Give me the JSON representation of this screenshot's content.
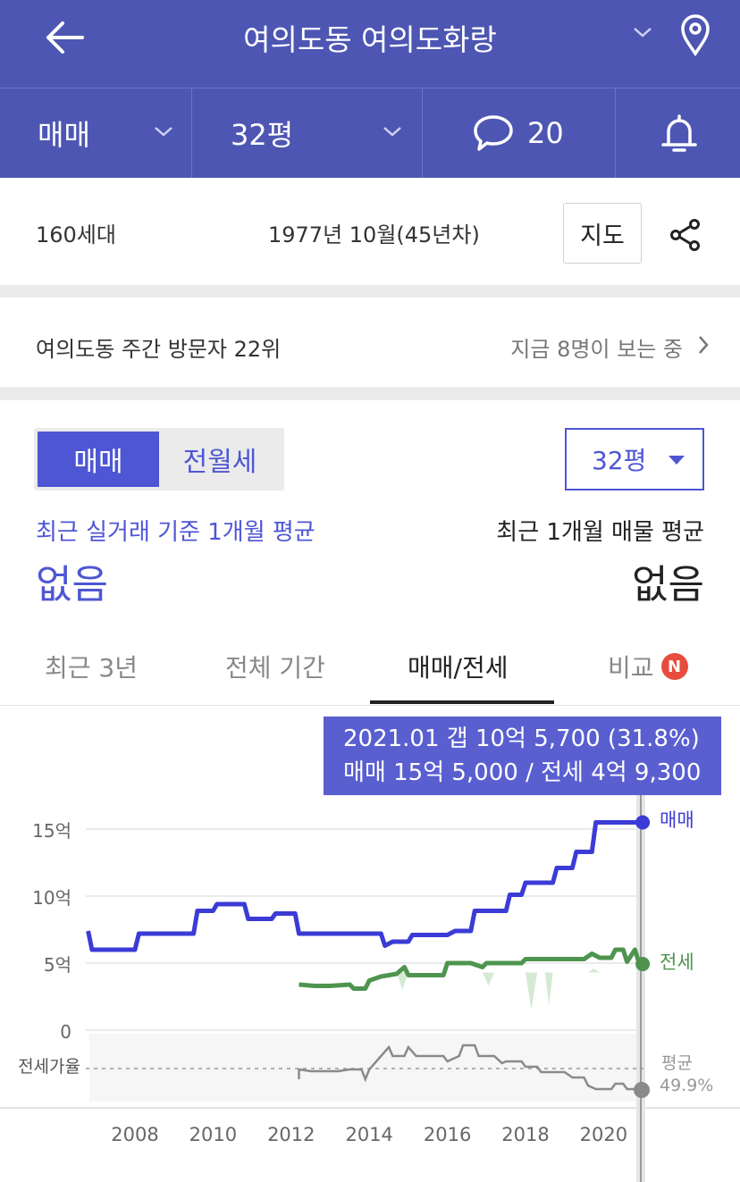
{
  "header": {
    "title": "여의도동 여의도화랑",
    "back_icon": "back-arrow-icon",
    "dropdown_icon": "chevron-down-icon",
    "location_icon": "location-pin-icon",
    "brand_color": "#4e56b3"
  },
  "filters": {
    "deal_type": "매매",
    "size": "32평",
    "comments_count": "20",
    "comment_icon": "chat-bubble-icon",
    "alert_icon": "bell-icon"
  },
  "info": {
    "households": "160세대",
    "built": "1977년 10월(45년차)",
    "map_button": "지도",
    "share_icon": "share-icon"
  },
  "visitors": {
    "rank_text": "여의도동 주간 방문자 22위",
    "viewing_now": "지금 8명이 보는 중"
  },
  "toggle": {
    "selected": "매매",
    "other": "전월세",
    "accent": "#4e56d4"
  },
  "size_select": "32평",
  "averages": {
    "left_label": "최근 실거래 기준 1개월 평균",
    "left_value": "없음",
    "right_label": "최근 1개월 매물 평균",
    "right_value": "없음"
  },
  "tabs": [
    {
      "label": "최근 3년",
      "active": false
    },
    {
      "label": "전체 기간",
      "active": false
    },
    {
      "label": "매매/전세",
      "active": true
    },
    {
      "label": "비교",
      "active": false,
      "badge": "N"
    }
  ],
  "tooltip": {
    "line1": "2021.01  갭 10억 5,700 (31.8%)",
    "line2": "매매 15억 5,000 / 전세 4억 9,300"
  },
  "chart_data": {
    "type": "line",
    "y_ticks": [
      "15억",
      "10억",
      "5억",
      "0"
    ],
    "y_values": [
      15,
      10,
      5,
      0
    ],
    "x_ticks": [
      "2008",
      "2010",
      "2012",
      "2014",
      "2016",
      "2018",
      "2020"
    ],
    "x_tick_values": [
      2008,
      2010,
      2012,
      2014,
      2016,
      2018,
      2020
    ],
    "y_unit": "억",
    "series": [
      {
        "name": "매매",
        "color": "#3b3bd6",
        "points": [
          [
            2006.8,
            7.4
          ],
          [
            2006.9,
            6.0
          ],
          [
            2008.0,
            6.0
          ],
          [
            2008.1,
            7.2
          ],
          [
            2009.5,
            7.2
          ],
          [
            2009.6,
            8.9
          ],
          [
            2010.0,
            8.9
          ],
          [
            2010.1,
            9.4
          ],
          [
            2010.8,
            9.4
          ],
          [
            2010.9,
            8.3
          ],
          [
            2011.5,
            8.3
          ],
          [
            2011.6,
            8.7
          ],
          [
            2012.1,
            8.7
          ],
          [
            2012.2,
            7.2
          ],
          [
            2014.3,
            7.2
          ],
          [
            2014.4,
            6.3
          ],
          [
            2014.6,
            6.6
          ],
          [
            2015.0,
            6.6
          ],
          [
            2015.1,
            7.1
          ],
          [
            2016.0,
            7.1
          ],
          [
            2016.2,
            7.4
          ],
          [
            2016.6,
            7.4
          ],
          [
            2016.7,
            8.9
          ],
          [
            2017.5,
            8.9
          ],
          [
            2017.6,
            10.1
          ],
          [
            2017.9,
            10.1
          ],
          [
            2018.0,
            11.0
          ],
          [
            2018.7,
            11.0
          ],
          [
            2018.8,
            12.1
          ],
          [
            2019.2,
            12.1
          ],
          [
            2019.3,
            13.3
          ],
          [
            2019.7,
            13.3
          ],
          [
            2019.8,
            15.5
          ],
          [
            2021.0,
            15.5
          ]
        ]
      },
      {
        "name": "전세",
        "color": "#4e944f",
        "points": [
          [
            2012.2,
            3.4
          ],
          [
            2012.6,
            3.3
          ],
          [
            2013.0,
            3.3
          ],
          [
            2013.5,
            3.4
          ],
          [
            2013.6,
            3.1
          ],
          [
            2013.9,
            3.1
          ],
          [
            2014.0,
            3.7
          ],
          [
            2014.3,
            4.0
          ],
          [
            2014.7,
            4.2
          ],
          [
            2014.9,
            4.7
          ],
          [
            2015.0,
            4.1
          ],
          [
            2015.9,
            4.1
          ],
          [
            2016.0,
            5.0
          ],
          [
            2016.6,
            5.0
          ],
          [
            2016.9,
            4.7
          ],
          [
            2017.0,
            5.0
          ],
          [
            2017.9,
            5.0
          ],
          [
            2018.0,
            5.3
          ],
          [
            2019.5,
            5.3
          ],
          [
            2019.7,
            5.7
          ],
          [
            2019.9,
            5.4
          ],
          [
            2020.2,
            5.4
          ],
          [
            2020.3,
            6.0
          ],
          [
            2020.5,
            6.0
          ],
          [
            2020.6,
            5.1
          ],
          [
            2020.8,
            6.0
          ],
          [
            2020.9,
            5.1
          ],
          [
            2021.0,
            4.93
          ]
        ]
      }
    ],
    "ratio": {
      "label": "전세가율",
      "avg_label": "평균",
      "avg_value": "49.9%"
    },
    "end_labels": {
      "sale": "매매",
      "lease": "전세"
    }
  }
}
